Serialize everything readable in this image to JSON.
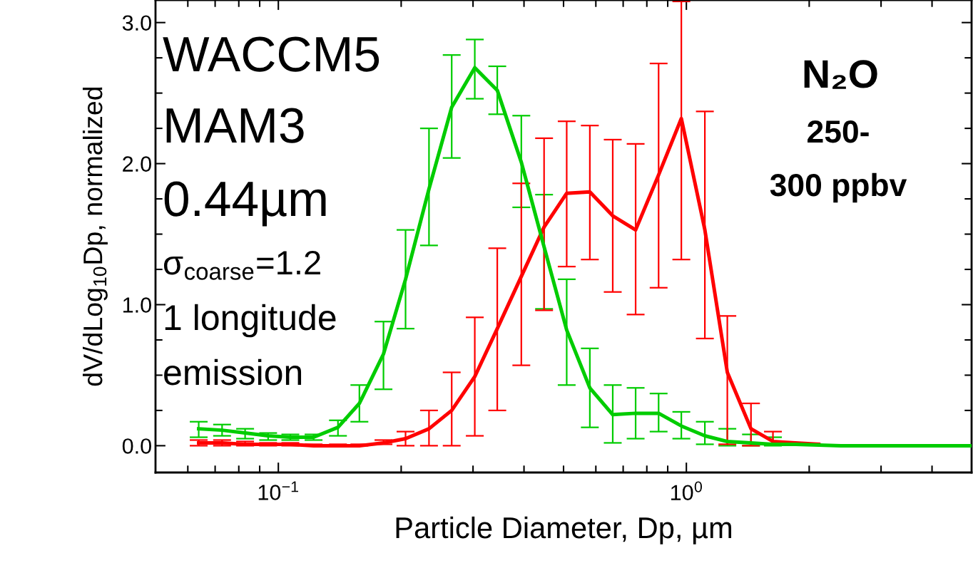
{
  "chart_data": {
    "type": "line",
    "xlabel": "Particle Diameter, Dp, µm",
    "ylabel": "dV/dLog$_{10}$Dp, normalized",
    "log": "x",
    "grid": false,
    "marker": "none",
    "line_style": "solid",
    "xlim": [
      0.05,
      5
    ],
    "ylim": [
      -0.19,
      3.16
    ],
    "xticks": [
      {
        "value": 0.06,
        "label": null
      },
      {
        "value": 0.07,
        "label": null
      },
      {
        "value": 0.08,
        "label": null
      },
      {
        "value": 0.09,
        "label": null
      },
      {
        "value": 0.1,
        "label": "10$^{−1}$"
      },
      {
        "value": 0.2,
        "label": null
      },
      {
        "value": 0.3,
        "label": null
      },
      {
        "value": 0.4,
        "label": null
      },
      {
        "value": 0.5,
        "label": null
      },
      {
        "value": 0.6,
        "label": null
      },
      {
        "value": 0.7,
        "label": null
      },
      {
        "value": 0.8,
        "label": null
      },
      {
        "value": 0.9,
        "label": null
      },
      {
        "value": 1,
        "label": "10$^{0}$"
      },
      {
        "value": 2,
        "label": null
      },
      {
        "value": 3,
        "label": null
      },
      {
        "value": 4,
        "label": null
      }
    ],
    "yticks": [
      {
        "value": 0,
        "label": "0.0"
      },
      {
        "value": 0.25,
        "label": null
      },
      {
        "value": 0.5,
        "label": null
      },
      {
        "value": 0.75,
        "label": null
      },
      {
        "value": 1,
        "label": "1.0"
      },
      {
        "value": 1.25,
        "label": null
      },
      {
        "value": 1.5,
        "label": null
      },
      {
        "value": 1.75,
        "label": null
      },
      {
        "value": 2,
        "label": "2.0"
      },
      {
        "value": 2.25,
        "label": null
      },
      {
        "value": 2.5,
        "label": null
      },
      {
        "value": 2.75,
        "label": null
      },
      {
        "value": 3,
        "label": "3.0"
      }
    ],
    "x": [
      0.0638,
      0.0728,
      0.0829,
      0.0944,
      0.107,
      0.122,
      0.14,
      0.158,
      0.181,
      0.205,
      0.234,
      0.266,
      0.303,
      0.344,
      0.394,
      0.448,
      0.509,
      0.58,
      0.66,
      0.751,
      0.855,
      0.972,
      1.11,
      1.26,
      1.44,
      1.63,
      1.85,
      2.11,
      2.39,
      2.72,
      3.09,
      3.52,
      4.0,
      4.56,
      5.0
    ],
    "series": [
      {
        "color": "#00cc00",
        "values": [
          0.12,
          0.11,
          0.09,
          0.07,
          0.06,
          0.06,
          0.13,
          0.3,
          0.65,
          1.18,
          1.82,
          2.4,
          2.68,
          2.52,
          2.01,
          1.41,
          0.82,
          0.41,
          0.22,
          0.23,
          0.23,
          0.14,
          0.07,
          0.03,
          0.02,
          0.01,
          0.01,
          0.005,
          0,
          0,
          0,
          0,
          0,
          0,
          0
        ],
        "errors": [
          [
            0.06,
            0.17
          ],
          [
            0.07,
            0.15
          ],
          [
            0.05,
            0.12
          ],
          [
            0.04,
            0.09
          ],
          [
            0.04,
            0.08
          ],
          [
            0.04,
            0.08
          ],
          [
            0.07,
            0.18
          ],
          [
            0.17,
            0.43
          ],
          [
            0.4,
            0.88
          ],
          [
            0.83,
            1.53
          ],
          [
            1.42,
            2.25
          ],
          [
            2.04,
            2.77
          ],
          [
            2.46,
            2.88
          ],
          [
            2.35,
            2.69
          ],
          [
            1.69,
            2.34
          ],
          [
            0.97,
            1.78
          ],
          [
            0.43,
            1.18
          ],
          [
            0.13,
            0.69
          ],
          [
            0.02,
            0.43
          ],
          [
            0.05,
            0.41
          ],
          [
            0.1,
            0.37
          ],
          [
            0.05,
            0.24
          ],
          [
            0.01,
            0.17
          ],
          [
            0,
            0.12
          ],
          [
            0,
            0.08
          ],
          [
            0,
            0.06
          ],
          null,
          null,
          null,
          null,
          null,
          null,
          null,
          null,
          null
        ]
      },
      {
        "color": "#ff0000",
        "values": [
          0.02,
          0.02,
          0.01,
          0.01,
          0.01,
          0,
          0,
          0,
          0.02,
          0.05,
          0.12,
          0.25,
          0.49,
          0.83,
          1.2,
          1.55,
          1.79,
          1.8,
          1.63,
          1.53,
          1.92,
          2.32,
          1.53,
          0.52,
          0.12,
          0.03,
          0.02,
          0.01,
          null,
          null,
          null,
          null,
          null,
          null,
          null
        ],
        "errors": [
          [
            0,
            0.04
          ],
          [
            0,
            0.04
          ],
          [
            0,
            0.03
          ],
          [
            0,
            0.02
          ],
          [
            0,
            0.02
          ],
          [
            0,
            0.01
          ],
          [
            0,
            0.01
          ],
          [
            0,
            0.01
          ],
          [
            0.01,
            0.04
          ],
          [
            0,
            0.1
          ],
          [
            0,
            0.25
          ],
          [
            0,
            0.52
          ],
          [
            0.07,
            0.91
          ],
          [
            0.25,
            1.4
          ],
          [
            0.57,
            1.86
          ],
          [
            0.96,
            2.18
          ],
          [
            1.27,
            2.3
          ],
          [
            1.32,
            2.27
          ],
          [
            1.09,
            2.17
          ],
          [
            0.93,
            2.14
          ],
          [
            1.12,
            2.71
          ],
          [
            1.32,
            3.15
          ],
          [
            0.76,
            2.37
          ],
          [
            0.01,
            0.92
          ],
          [
            0,
            0.3
          ],
          [
            0.01,
            0.1
          ],
          null,
          null,
          null,
          null,
          null,
          null,
          null,
          null,
          null
        ]
      }
    ],
    "annotations": [
      "WACCM5",
      "MAM3",
      "0.44µm",
      "σ$_{coarse}$=1.2",
      "1 longitude",
      "emission",
      "N₂O",
      "250-",
      "300 ppbv"
    ]
  }
}
